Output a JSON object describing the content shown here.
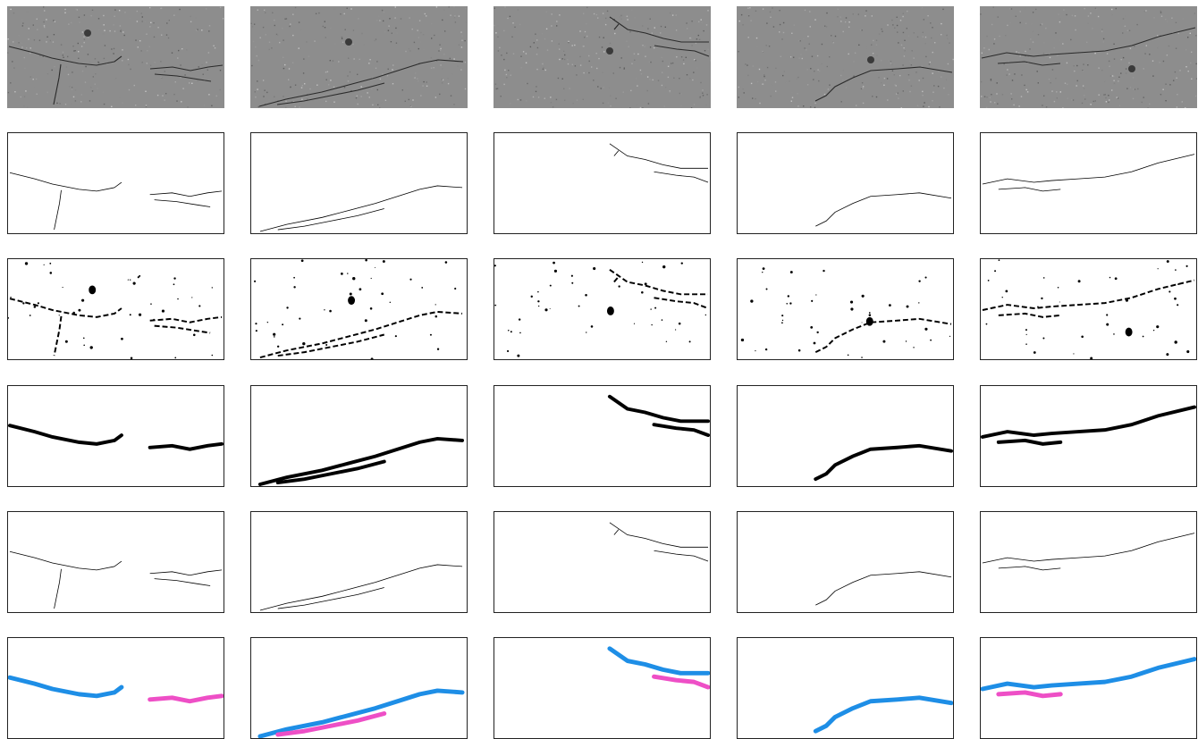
{
  "figure": {
    "rows": [
      {
        "id": "original_image",
        "kind": "photo"
      },
      {
        "id": "ground_truth",
        "kind": "thin_mask"
      },
      {
        "id": "threshold_result",
        "kind": "binary_noisy"
      },
      {
        "id": "thick_segmentation",
        "kind": "thick_mask"
      },
      {
        "id": "thin_detection",
        "kind": "thin_mask"
      },
      {
        "id": "instance_segmentation",
        "kind": "color_instances"
      }
    ],
    "columns": 5,
    "colors": {
      "background": "#ffffff",
      "frame": "#222222",
      "crack": "#000000",
      "instance_blue": "#1e8ee6",
      "instance_pink": "#ee4fc6",
      "photo_base": "#8d8d8d"
    }
  }
}
